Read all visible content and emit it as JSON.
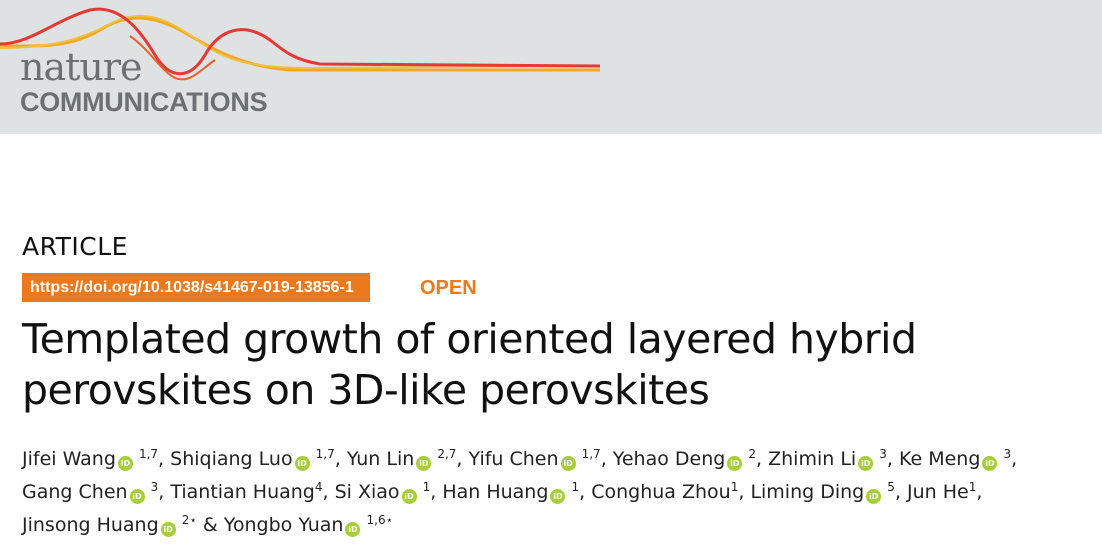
{
  "journal": {
    "name_top": "nature",
    "name_bottom": "COMMUNICATIONS"
  },
  "article": {
    "type": "ARTICLE",
    "doi": "https://doi.org/10.1038/s41467-019-13856-1",
    "access": "OPEN",
    "title_line1": "Templated growth of oriented layered hybrid",
    "title_line2": "perovskites on 3D-like perovskites"
  },
  "orcid_icon": {
    "label": "iD",
    "color": "#a6ce39"
  },
  "authors": [
    {
      "name": "Jifei Wang",
      "aff": "1,7",
      "sep": ", "
    },
    {
      "name": "Shiqiang Luo",
      "aff": "1,7",
      "sep": ", "
    },
    {
      "name": "Yun Lin",
      "aff": "2,7",
      "sep": ", "
    },
    {
      "name": "Yifu Chen",
      "aff": "1,7",
      "sep": ", "
    },
    {
      "name": "Yehao Deng",
      "aff": "2",
      "sep": ", "
    },
    {
      "name": "Zhimin Li",
      "aff": "3",
      "sep": ", "
    },
    {
      "name": "Ke Meng",
      "aff": "3",
      "sep": ", "
    },
    {
      "name": "Gang Chen",
      "aff": "3",
      "sep": ", "
    },
    {
      "name": "Tiantian Huang",
      "aff": "4",
      "sep": ", "
    },
    {
      "name": "Si Xiao",
      "aff": "1",
      "sep": ", "
    },
    {
      "name": "Han Huang",
      "aff": "1",
      "sep": ", "
    },
    {
      "name": "Conghua Zhou",
      "aff": "1",
      "sep": ", "
    },
    {
      "name": "Liming Ding",
      "aff": "5",
      "sep": ", "
    },
    {
      "name": "Jun He",
      "aff": "1",
      "sep": ", "
    },
    {
      "name": "Jinsong Huang",
      "aff": "2⋆",
      "sep": " & "
    },
    {
      "name": "Yongbo Yuan",
      "aff": "1,6⋆",
      "sep": ""
    }
  ],
  "colors": {
    "accent": "#ec7a1d",
    "banner": "#dfe2e2",
    "logo_text": "#6b7073"
  }
}
